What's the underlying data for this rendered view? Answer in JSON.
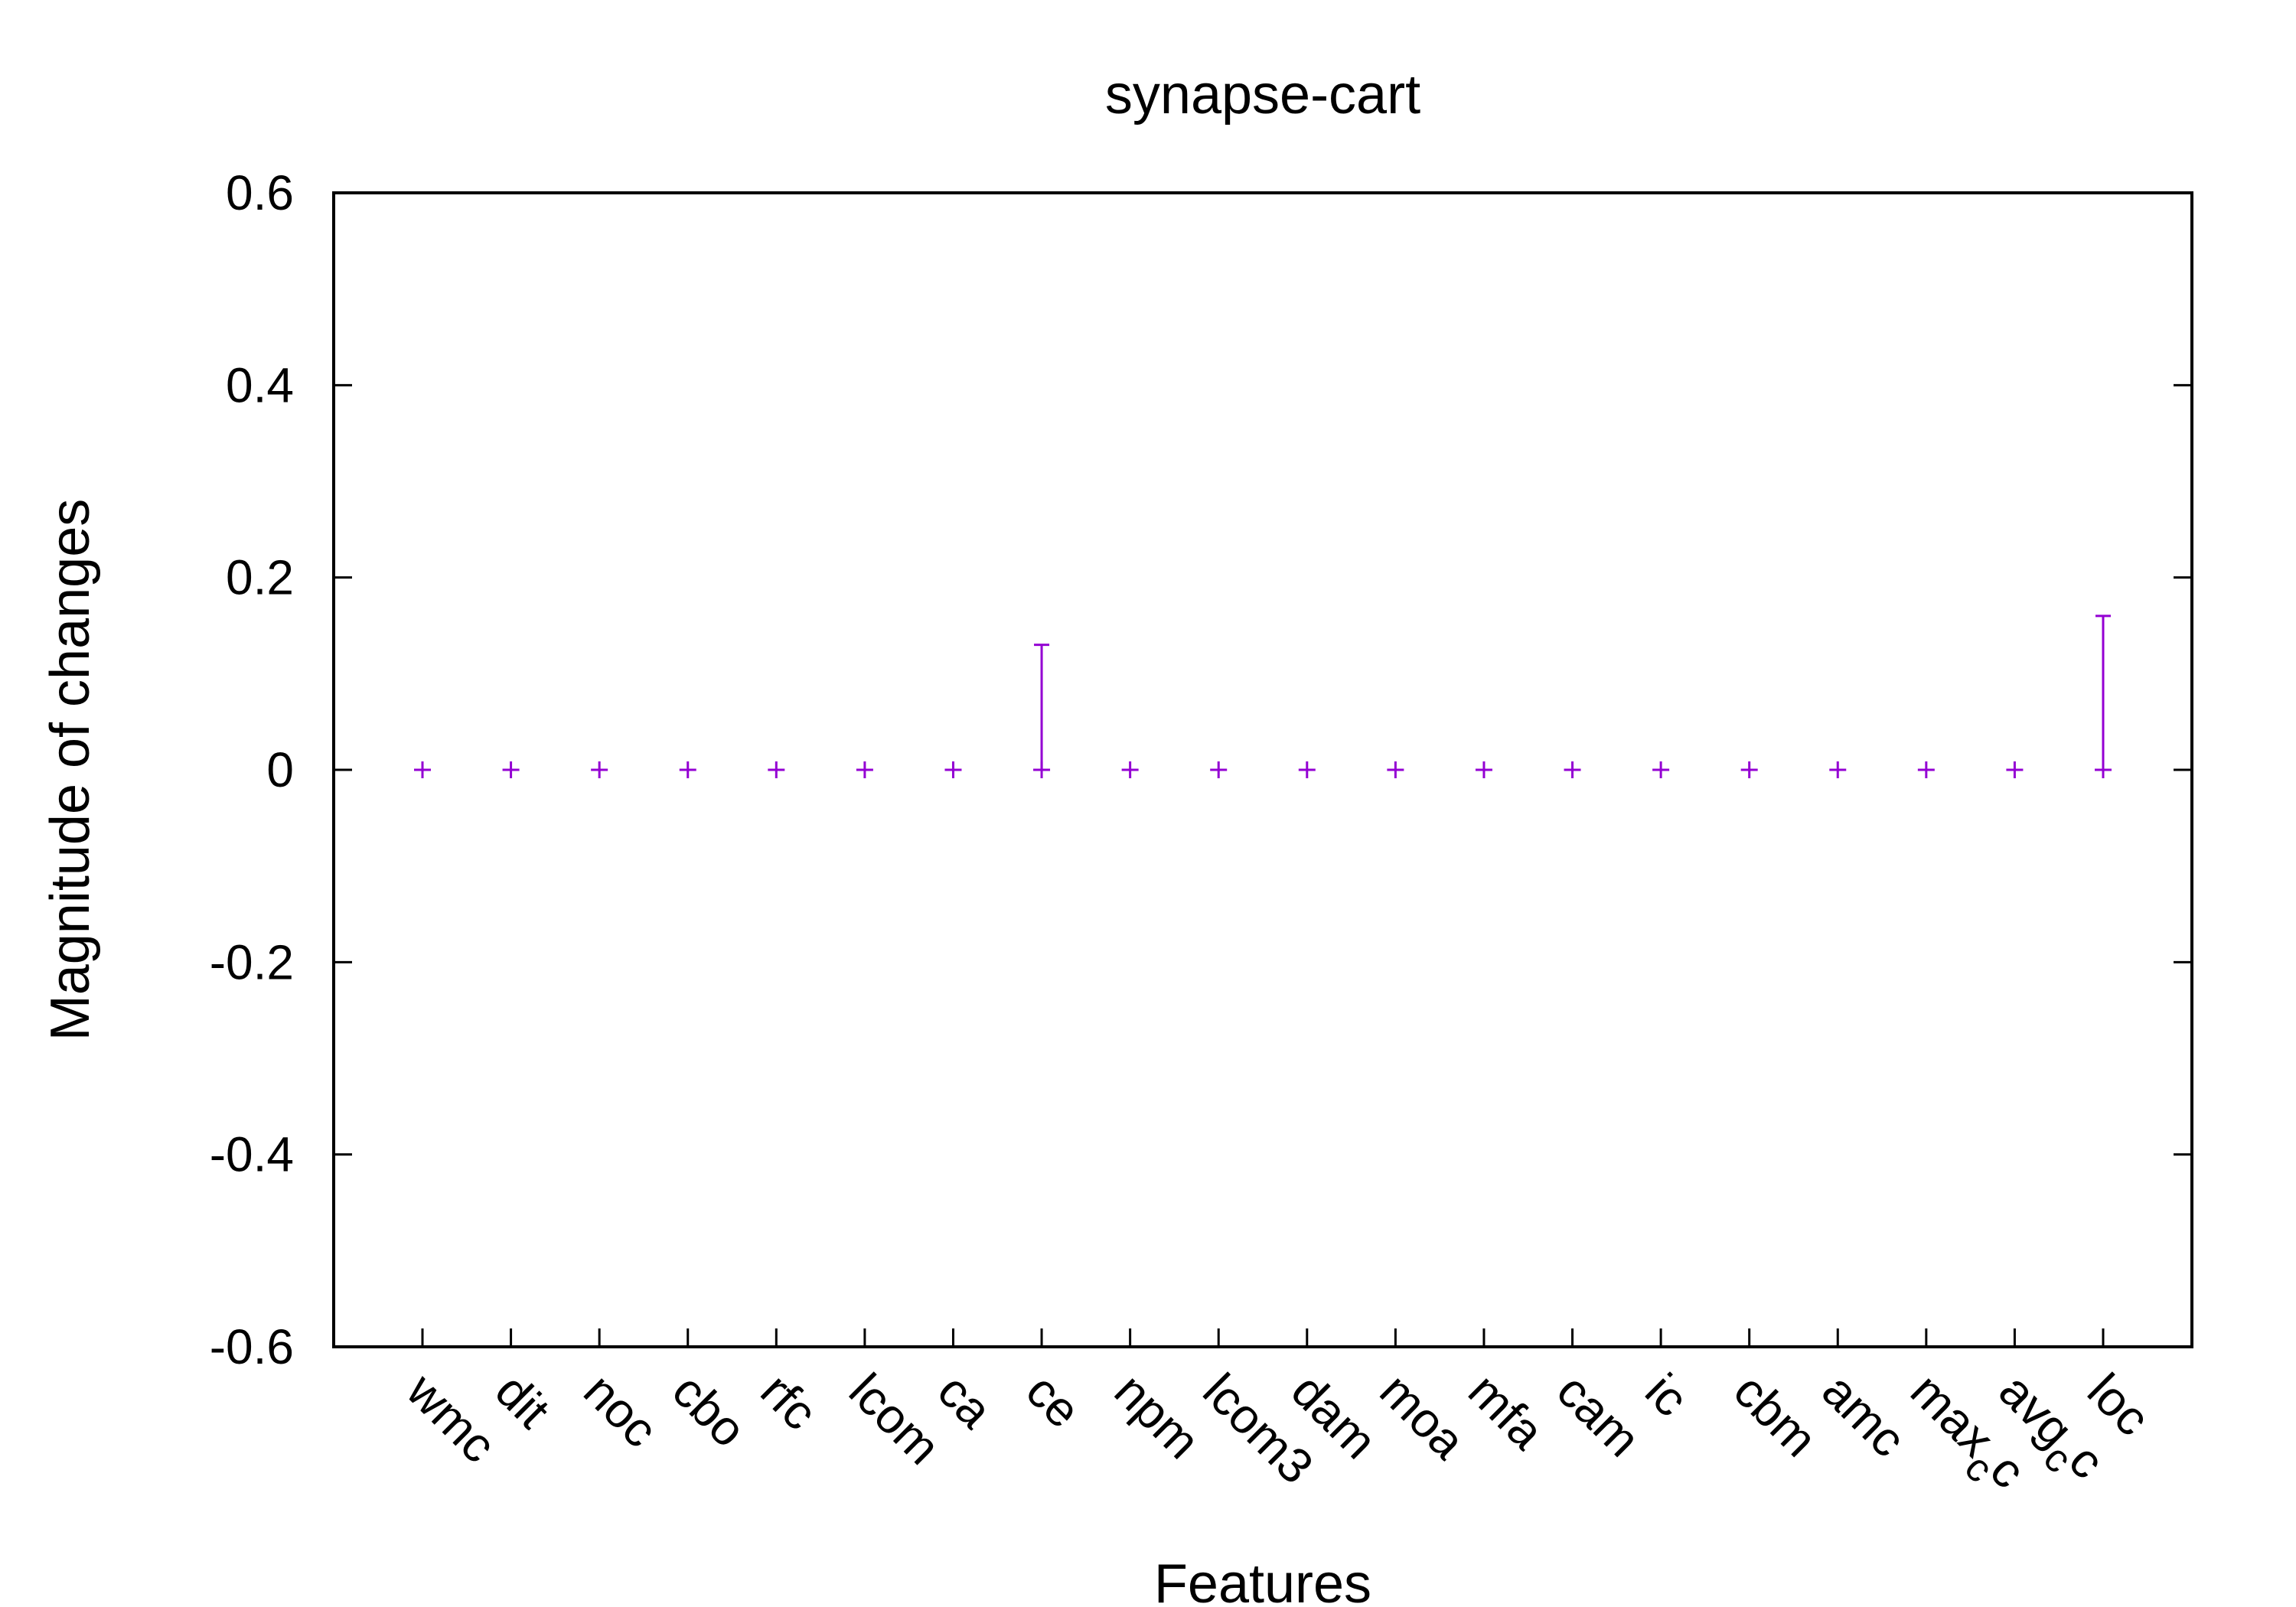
{
  "chart_data": {
    "type": "scatter",
    "title": "synapse-cart",
    "xlabel": "Features",
    "ylabel": "Magnitude of changes",
    "ylim": [
      -0.6,
      0.6
    ],
    "yticks": [
      -0.6,
      -0.4,
      -0.2,
      0,
      0.2,
      0.4,
      0.6
    ],
    "ytick_labels": [
      "-0.6",
      "-0.4",
      "-0.2",
      "0",
      "0.2",
      "0.4",
      "0.6"
    ],
    "categories": [
      "wmc",
      "dit",
      "noc",
      "cbo",
      "rfc",
      "lcom",
      "ca",
      "ce",
      "npm",
      "lcom3",
      "dam",
      "moa",
      "mfa",
      "cam",
      "ic",
      "cbm",
      "amc",
      "max_cc",
      "avg_cc",
      "loc"
    ],
    "category_display": [
      {
        "base": "wmc",
        "sub": "",
        "tail": ""
      },
      {
        "base": "dit",
        "sub": "",
        "tail": ""
      },
      {
        "base": "noc",
        "sub": "",
        "tail": ""
      },
      {
        "base": "cbo",
        "sub": "",
        "tail": ""
      },
      {
        "base": "rfc",
        "sub": "",
        "tail": ""
      },
      {
        "base": "lcom",
        "sub": "",
        "tail": ""
      },
      {
        "base": "ca",
        "sub": "",
        "tail": ""
      },
      {
        "base": "ce",
        "sub": "",
        "tail": ""
      },
      {
        "base": "npm",
        "sub": "",
        "tail": ""
      },
      {
        "base": "lcom3",
        "sub": "",
        "tail": ""
      },
      {
        "base": "dam",
        "sub": "",
        "tail": ""
      },
      {
        "base": "moa",
        "sub": "",
        "tail": ""
      },
      {
        "base": "mfa",
        "sub": "",
        "tail": ""
      },
      {
        "base": "cam",
        "sub": "",
        "tail": ""
      },
      {
        "base": "ic",
        "sub": "",
        "tail": ""
      },
      {
        "base": "cbm",
        "sub": "",
        "tail": ""
      },
      {
        "base": "amc",
        "sub": "",
        "tail": ""
      },
      {
        "base": "max",
        "sub": "c",
        "tail": "c"
      },
      {
        "base": "avg",
        "sub": "c",
        "tail": "c"
      },
      {
        "base": "loc",
        "sub": "",
        "tail": ""
      }
    ],
    "series": [
      {
        "values": [
          0,
          0,
          0,
          0,
          0,
          0,
          0,
          0,
          0,
          0,
          0,
          0,
          0,
          0,
          0,
          0,
          0,
          0,
          0,
          0
        ],
        "error_low": [
          0,
          0,
          0,
          0,
          0,
          0,
          0,
          0,
          0,
          0,
          0,
          0,
          0,
          0,
          0,
          0,
          0,
          0,
          0,
          0
        ],
        "error_high": [
          0,
          0,
          0,
          0,
          0,
          0,
          0,
          0.13,
          0,
          0,
          0,
          0,
          0,
          0,
          0,
          0,
          0,
          0,
          0,
          0.16
        ],
        "color": "#9400d3",
        "marker": "plus"
      }
    ],
    "grid": false,
    "legend": "none"
  }
}
